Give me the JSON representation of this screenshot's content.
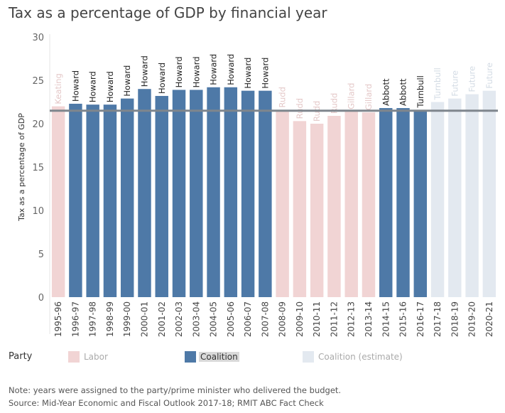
{
  "chart_data": {
    "type": "bar",
    "title": "Tax as a percentage of GDP by financial year",
    "ylabel": "Tax as a percentage of GDP",
    "xlabel": "",
    "ylim": [
      0,
      30
    ],
    "yticks": [
      0,
      5,
      10,
      15,
      20,
      25,
      30
    ],
    "grid": false,
    "reference_line": 21.5,
    "categories": [
      "1995-96",
      "1996-97",
      "1997-98",
      "1998-99",
      "1999-00",
      "2000-01",
      "2001-02",
      "2002-03",
      "2003-04",
      "2004-05",
      "2005-06",
      "2006-07",
      "2007-08",
      "2008-09",
      "2009-10",
      "2010-11",
      "2011-12",
      "2012-13",
      "2013-14",
      "2014-15",
      "2015-16",
      "2016-17",
      "2017-18",
      "2018-19",
      "2019-20",
      "2020-21"
    ],
    "values": [
      22.0,
      22.3,
      22.2,
      22.2,
      22.9,
      24.0,
      23.2,
      23.9,
      23.9,
      24.2,
      24.2,
      23.8,
      23.8,
      21.6,
      20.3,
      20.0,
      20.9,
      21.4,
      21.3,
      21.8,
      21.8,
      21.6,
      22.5,
      22.9,
      23.4,
      23.8
    ],
    "bar_labels": [
      "Keating",
      "Howard",
      "Howard",
      "Howard",
      "Howard",
      "Howard",
      "Howard",
      "Howard",
      "Howard",
      "Howard",
      "Howard",
      "Howard",
      "Howard",
      "Rudd",
      "Rudd",
      "Rudd",
      "Rudd",
      "Gillard",
      "Gillard",
      "Abbott",
      "Abbott",
      "Turnbull",
      "Turnbull",
      "Future",
      "Future",
      "Future"
    ],
    "party": [
      "Labor",
      "Coalition",
      "Coalition",
      "Coalition",
      "Coalition",
      "Coalition",
      "Coalition",
      "Coalition",
      "Coalition",
      "Coalition",
      "Coalition",
      "Coalition",
      "Coalition",
      "Labor",
      "Labor",
      "Labor",
      "Labor",
      "Labor",
      "Labor",
      "Coalition",
      "Coalition",
      "Coalition",
      "Coalition (estimate)",
      "Coalition (estimate)",
      "Coalition (estimate)",
      "Coalition (estimate)"
    ],
    "legend": {
      "title": "Party",
      "placement": "bottom",
      "entries": [
        {
          "name": "Labor",
          "color": "#f1d4d4"
        },
        {
          "name": "Coalition",
          "color": "#4e79a7"
        },
        {
          "name": "Coalition (estimate)",
          "color": "#e3e9f0"
        }
      ]
    }
  },
  "colors": {
    "Labor": "#f1d4d4",
    "Coalition": "#4e79a7",
    "Coalition (estimate)": "#e3e9f0",
    "reference_line": "#7f868d"
  },
  "notes": {
    "note": "Note: years were assigned to the party/prime minister who delivered the budget.",
    "source": "Source: Mid-Year Economic and Fiscal Outlook 2017-18; RMIT ABC Fact Check"
  }
}
